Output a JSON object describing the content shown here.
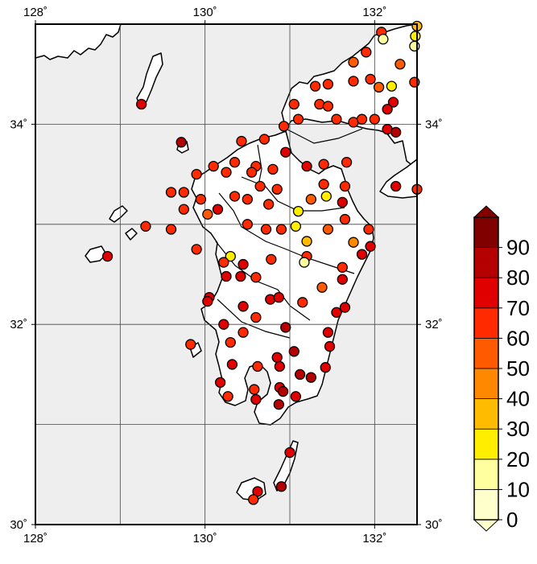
{
  "map": {
    "lon_range": [
      128,
      132.5
    ],
    "lat_range": [
      30,
      35
    ],
    "x_ticks": [
      {
        "value": 128,
        "label": "128˚"
      },
      {
        "value": 130,
        "label": "130˚"
      },
      {
        "value": 132,
        "label": "132˚"
      }
    ],
    "y_ticks": [
      {
        "value": 30,
        "label": "30˚"
      },
      {
        "value": 32,
        "label": "32˚"
      },
      {
        "value": 34,
        "label": "34˚"
      }
    ],
    "grid_lon": [
      129,
      130,
      131,
      132
    ],
    "grid_lat": [
      31,
      32,
      33,
      34
    ],
    "colors": {
      "sea": "#eeeeee",
      "land": "#ffffff",
      "coast": "#000000",
      "grid": "#444444"
    }
  },
  "colorbar": {
    "labels": [
      "0",
      "10",
      "20",
      "30",
      "40",
      "50",
      "60",
      "70",
      "80",
      "90"
    ],
    "colors": [
      "#ffffcc",
      "#ffffa0",
      "#ffee00",
      "#ffbb00",
      "#ff8800",
      "#ff5a00",
      "#ff2a00",
      "#e00000",
      "#b40000",
      "#800000"
    ]
  },
  "stations": [
    [
      132.08,
      34.92,
      65
    ],
    [
      132.1,
      34.85,
      15
    ],
    [
      132.5,
      34.98,
      35
    ],
    [
      132.48,
      34.88,
      25
    ],
    [
      132.47,
      34.78,
      10
    ],
    [
      131.75,
      34.62,
      55
    ],
    [
      131.9,
      34.72,
      65
    ],
    [
      132.3,
      34.6,
      50
    ],
    [
      132.47,
      34.42,
      60
    ],
    [
      131.3,
      34.38,
      60
    ],
    [
      131.45,
      34.4,
      60
    ],
    [
      131.75,
      34.43,
      60
    ],
    [
      131.95,
      34.45,
      60
    ],
    [
      132.05,
      34.37,
      58
    ],
    [
      132.2,
      34.38,
      20
    ],
    [
      131.05,
      34.2,
      62
    ],
    [
      131.35,
      34.2,
      60
    ],
    [
      131.45,
      34.18,
      65
    ],
    [
      132.22,
      34.22,
      70
    ],
    [
      132.15,
      34.15,
      70
    ],
    [
      131.1,
      34.05,
      65
    ],
    [
      131.75,
      34.02,
      60
    ],
    [
      131.85,
      34.05,
      60
    ],
    [
      132.0,
      34.05,
      60
    ],
    [
      131.55,
      34.05,
      60
    ],
    [
      132.15,
      33.95,
      70
    ],
    [
      132.25,
      33.92,
      80
    ],
    [
      129.25,
      34.2,
      75
    ],
    [
      130.93,
      33.98,
      65
    ],
    [
      130.7,
      33.85,
      60
    ],
    [
      130.43,
      33.83,
      60
    ],
    [
      130.95,
      33.72,
      70
    ],
    [
      129.72,
      33.82,
      80
    ],
    [
      130.35,
      33.62,
      60
    ],
    [
      130.6,
      33.58,
      60
    ],
    [
      130.8,
      33.55,
      60
    ],
    [
      130.55,
      33.52,
      60
    ],
    [
      130.65,
      33.38,
      60
    ],
    [
      130.85,
      33.35,
      60
    ],
    [
      130.1,
      33.58,
      60
    ],
    [
      130.25,
      33.52,
      60
    ],
    [
      131.2,
      33.58,
      78
    ],
    [
      131.4,
      33.6,
      65
    ],
    [
      131.67,
      33.62,
      65
    ],
    [
      129.9,
      33.5,
      68
    ],
    [
      129.95,
      33.25,
      60
    ],
    [
      129.6,
      33.32,
      68
    ],
    [
      129.75,
      33.32,
      65
    ],
    [
      129.75,
      33.15,
      62
    ],
    [
      130.15,
      33.15,
      70
    ],
    [
      130.35,
      33.28,
      60
    ],
    [
      130.5,
      33.25,
      60
    ],
    [
      130.75,
      33.2,
      60
    ],
    [
      130.03,
      33.1,
      58
    ],
    [
      131.25,
      33.25,
      55
    ],
    [
      131.43,
      33.28,
      25
    ],
    [
      131.4,
      33.4,
      60
    ],
    [
      131.65,
      33.38,
      65
    ],
    [
      132.25,
      33.38,
      78
    ],
    [
      132.5,
      33.35,
      60
    ],
    [
      131.1,
      33.13,
      20
    ],
    [
      131.62,
      33.22,
      70
    ],
    [
      131.65,
      33.05,
      65
    ],
    [
      131.07,
      32.98,
      28
    ],
    [
      131.2,
      32.83,
      30
    ],
    [
      131.45,
      32.95,
      55
    ],
    [
      129.3,
      32.98,
      68
    ],
    [
      129.6,
      32.95,
      65
    ],
    [
      129.9,
      32.75,
      60
    ],
    [
      130.5,
      33.0,
      60
    ],
    [
      130.72,
      32.95,
      60
    ],
    [
      130.9,
      32.95,
      60
    ],
    [
      131.93,
      32.95,
      65
    ],
    [
      131.75,
      32.82,
      45
    ],
    [
      131.85,
      32.7,
      78
    ],
    [
      131.95,
      32.78,
      72
    ],
    [
      128.85,
      32.68,
      70
    ],
    [
      130.3,
      32.68,
      25
    ],
    [
      130.22,
      32.62,
      60
    ],
    [
      130.45,
      32.6,
      70
    ],
    [
      130.78,
      32.65,
      60
    ],
    [
      131.2,
      32.68,
      60
    ],
    [
      131.17,
      32.62,
      15
    ],
    [
      130.25,
      32.48,
      75
    ],
    [
      130.42,
      32.48,
      70
    ],
    [
      130.6,
      32.47,
      62
    ],
    [
      131.62,
      32.57,
      68
    ],
    [
      131.38,
      32.37,
      50
    ],
    [
      131.62,
      32.45,
      70
    ],
    [
      130.05,
      32.27,
      78
    ],
    [
      130.03,
      32.23,
      70
    ],
    [
      130.77,
      32.25,
      70
    ],
    [
      130.87,
      32.27,
      70
    ],
    [
      131.15,
      32.22,
      62
    ],
    [
      130.45,
      32.18,
      70
    ],
    [
      130.6,
      32.07,
      60
    ],
    [
      131.55,
      32.12,
      70
    ],
    [
      131.65,
      32.17,
      70
    ],
    [
      130.22,
      32.0,
      70
    ],
    [
      130.3,
      31.82,
      68
    ],
    [
      130.45,
      31.92,
      68
    ],
    [
      130.95,
      31.97,
      80
    ],
    [
      131.45,
      31.92,
      70
    ],
    [
      131.05,
      31.73,
      80
    ],
    [
      131.47,
      31.78,
      70
    ],
    [
      129.83,
      31.8,
      65
    ],
    [
      130.32,
      31.6,
      70
    ],
    [
      130.62,
      31.58,
      68
    ],
    [
      130.85,
      31.67,
      70
    ],
    [
      130.88,
      31.58,
      70
    ],
    [
      131.42,
      31.57,
      72
    ],
    [
      130.18,
      31.42,
      78
    ],
    [
      130.58,
      31.35,
      60
    ],
    [
      130.88,
      31.37,
      78
    ],
    [
      130.92,
      31.33,
      85
    ],
    [
      131.12,
      31.5,
      80
    ],
    [
      131.25,
      31.47,
      80
    ],
    [
      130.27,
      31.28,
      68
    ],
    [
      130.6,
      31.25,
      70
    ],
    [
      130.87,
      31.2,
      80
    ],
    [
      131.07,
      31.28,
      75
    ],
    [
      131.0,
      30.72,
      70
    ],
    [
      130.62,
      30.33,
      72
    ],
    [
      130.57,
      30.25,
      65
    ],
    [
      130.9,
      30.38,
      80
    ]
  ]
}
